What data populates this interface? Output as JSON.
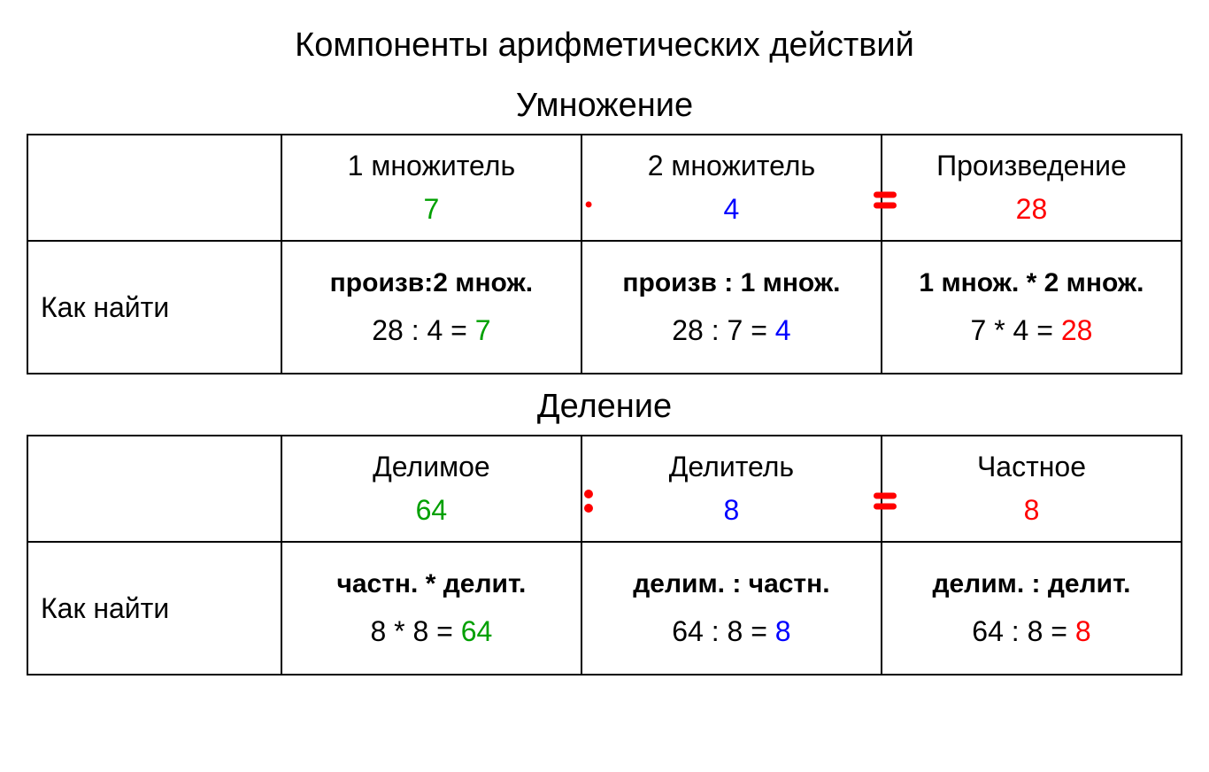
{
  "colors": {
    "green": "#00a000",
    "blue": "#0000ff",
    "red": "#ff0000",
    "black": "#000000",
    "border": "#000000",
    "background": "#ffffff"
  },
  "title": "Компоненты арифметических действий",
  "sections": [
    {
      "title": "Умножение",
      "row_label": "Как найти",
      "columns": [
        {
          "header": "1 множитель",
          "value": "7",
          "value_color": "green",
          "op_after": "dot",
          "rule": "произв:2 множ.",
          "example_prefix": "28 : 4 = ",
          "example_result": "7",
          "result_color": "green"
        },
        {
          "header": "2 множитель",
          "value": "4",
          "value_color": "blue",
          "op_after": "equals",
          "rule": "произв : 1 множ.",
          "example_prefix": "28 : 7 = ",
          "example_result": "4",
          "result_color": "blue"
        },
        {
          "header": "Произведение",
          "value": "28",
          "value_color": "red",
          "op_after": "",
          "rule": "1 множ. * 2 множ.",
          "example_prefix": "7 * 4 = ",
          "example_result": "28",
          "result_color": "red"
        }
      ]
    },
    {
      "title": "Деление",
      "row_label": "Как найти",
      "columns": [
        {
          "header": "Делимое",
          "value": "64",
          "value_color": "green",
          "op_after": "colon",
          "rule": "частн. * делит.",
          "example_prefix": "8 * 8 = ",
          "example_result": "64",
          "result_color": "green"
        },
        {
          "header": "Делитель",
          "value": "8",
          "value_color": "blue",
          "op_after": "equals",
          "rule": "делим. : частн.",
          "example_prefix": "64 : 8 = ",
          "example_result": "8",
          "result_color": "blue"
        },
        {
          "header": "Частное",
          "value": "8",
          "value_color": "red",
          "op_after": "",
          "rule": "делим. : делит.",
          "example_prefix": "64 : 8 = ",
          "example_result": "8",
          "result_color": "red"
        }
      ]
    }
  ]
}
